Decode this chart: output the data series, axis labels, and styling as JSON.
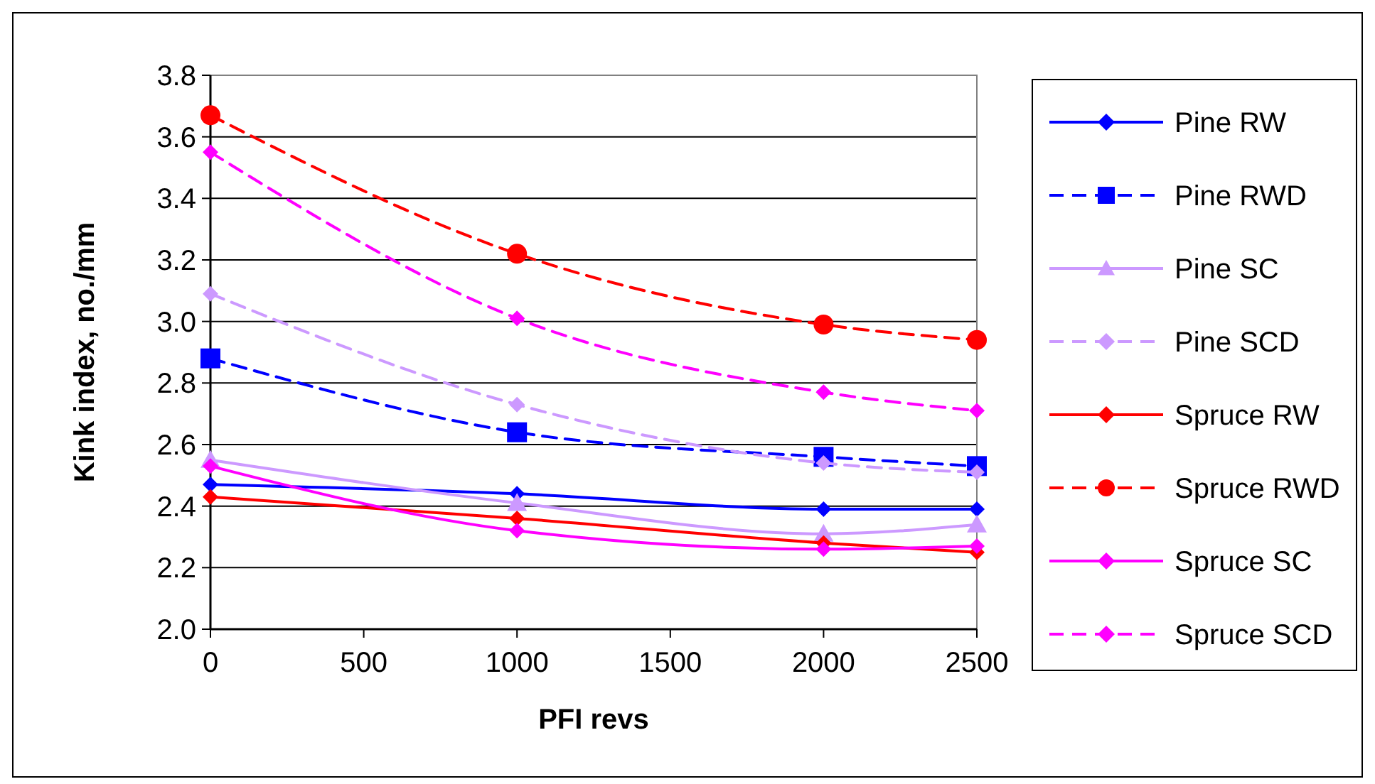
{
  "chart_data": {
    "type": "line",
    "xlabel": "PFI revs",
    "ylabel": "Kink index, no./mm",
    "x": [
      0,
      1000,
      2000,
      2500
    ],
    "xlim": [
      0,
      2500
    ],
    "xticks": [
      0,
      500,
      1000,
      1500,
      2000,
      2500
    ],
    "ylim": [
      2.0,
      3.8
    ],
    "yticks": [
      {
        "value": 2.0,
        "label": "2.0"
      },
      {
        "value": 2.2,
        "label": "2.2"
      },
      {
        "value": 2.4,
        "label": "2.4"
      },
      {
        "value": 2.6,
        "label": "2.6"
      },
      {
        "value": 2.8,
        "label": "2.8"
      },
      {
        "value": 3.0,
        "label": "3.0"
      },
      {
        "value": 3.2,
        "label": "3.2"
      },
      {
        "value": 3.4,
        "label": "3.4"
      },
      {
        "value": 3.6,
        "label": "3.6"
      },
      {
        "value": 3.8,
        "label": "3.8"
      }
    ],
    "grid": "y",
    "legend": "right",
    "series": [
      {
        "name": "Pine RW",
        "color": "#0000ff",
        "marker": "diamond",
        "line_style": "solid",
        "values": [
          2.47,
          2.44,
          2.39,
          2.39
        ]
      },
      {
        "name": "Pine RWD",
        "color": "#0000ff",
        "marker": "square",
        "line_style": "dashed",
        "values": [
          2.88,
          2.64,
          2.56,
          2.53
        ]
      },
      {
        "name": "Pine SC",
        "color": "#cc99ff",
        "marker": "triangle",
        "line_style": "solid",
        "values": [
          2.55,
          2.41,
          2.31,
          2.34
        ]
      },
      {
        "name": "Pine SCD",
        "color": "#cc99ff",
        "marker": "diamond",
        "line_style": "dashed",
        "values": [
          3.09,
          2.73,
          2.54,
          2.51
        ]
      },
      {
        "name": "Spruce RW",
        "color": "#ff0000",
        "marker": "diamond",
        "line_style": "solid",
        "values": [
          2.43,
          2.36,
          2.28,
          2.25
        ]
      },
      {
        "name": "Spruce RWD",
        "color": "#ff0000",
        "marker": "circle",
        "line_style": "dashed",
        "values": [
          3.67,
          3.22,
          2.99,
          2.94
        ]
      },
      {
        "name": "Spruce SC",
        "color": "#ff00ff",
        "marker": "diamond",
        "line_style": "solid",
        "values": [
          2.53,
          2.32,
          2.26,
          2.27
        ]
      },
      {
        "name": "Spruce SCD",
        "color": "#ff00ff",
        "marker": "diamond",
        "line_style": "dashed",
        "values": [
          3.55,
          3.01,
          2.77,
          2.71
        ]
      }
    ]
  }
}
